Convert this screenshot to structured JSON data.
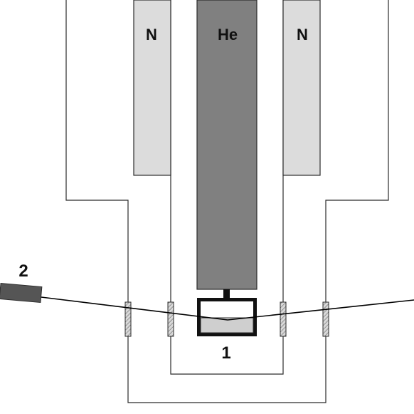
{
  "labels": {
    "nitrogen_left": "N",
    "helium": "He",
    "nitrogen_right": "N",
    "sample": "1",
    "detector": "2"
  },
  "colors": {
    "outline": "#2b2b2b",
    "nitrogen_fill": "#dcdcdc",
    "helium_fill": "#808080",
    "detector_fill": "#555555",
    "window_fill": "#d8d8d8",
    "sample_fill": "#cfcfcf",
    "beam": "#000000"
  }
}
